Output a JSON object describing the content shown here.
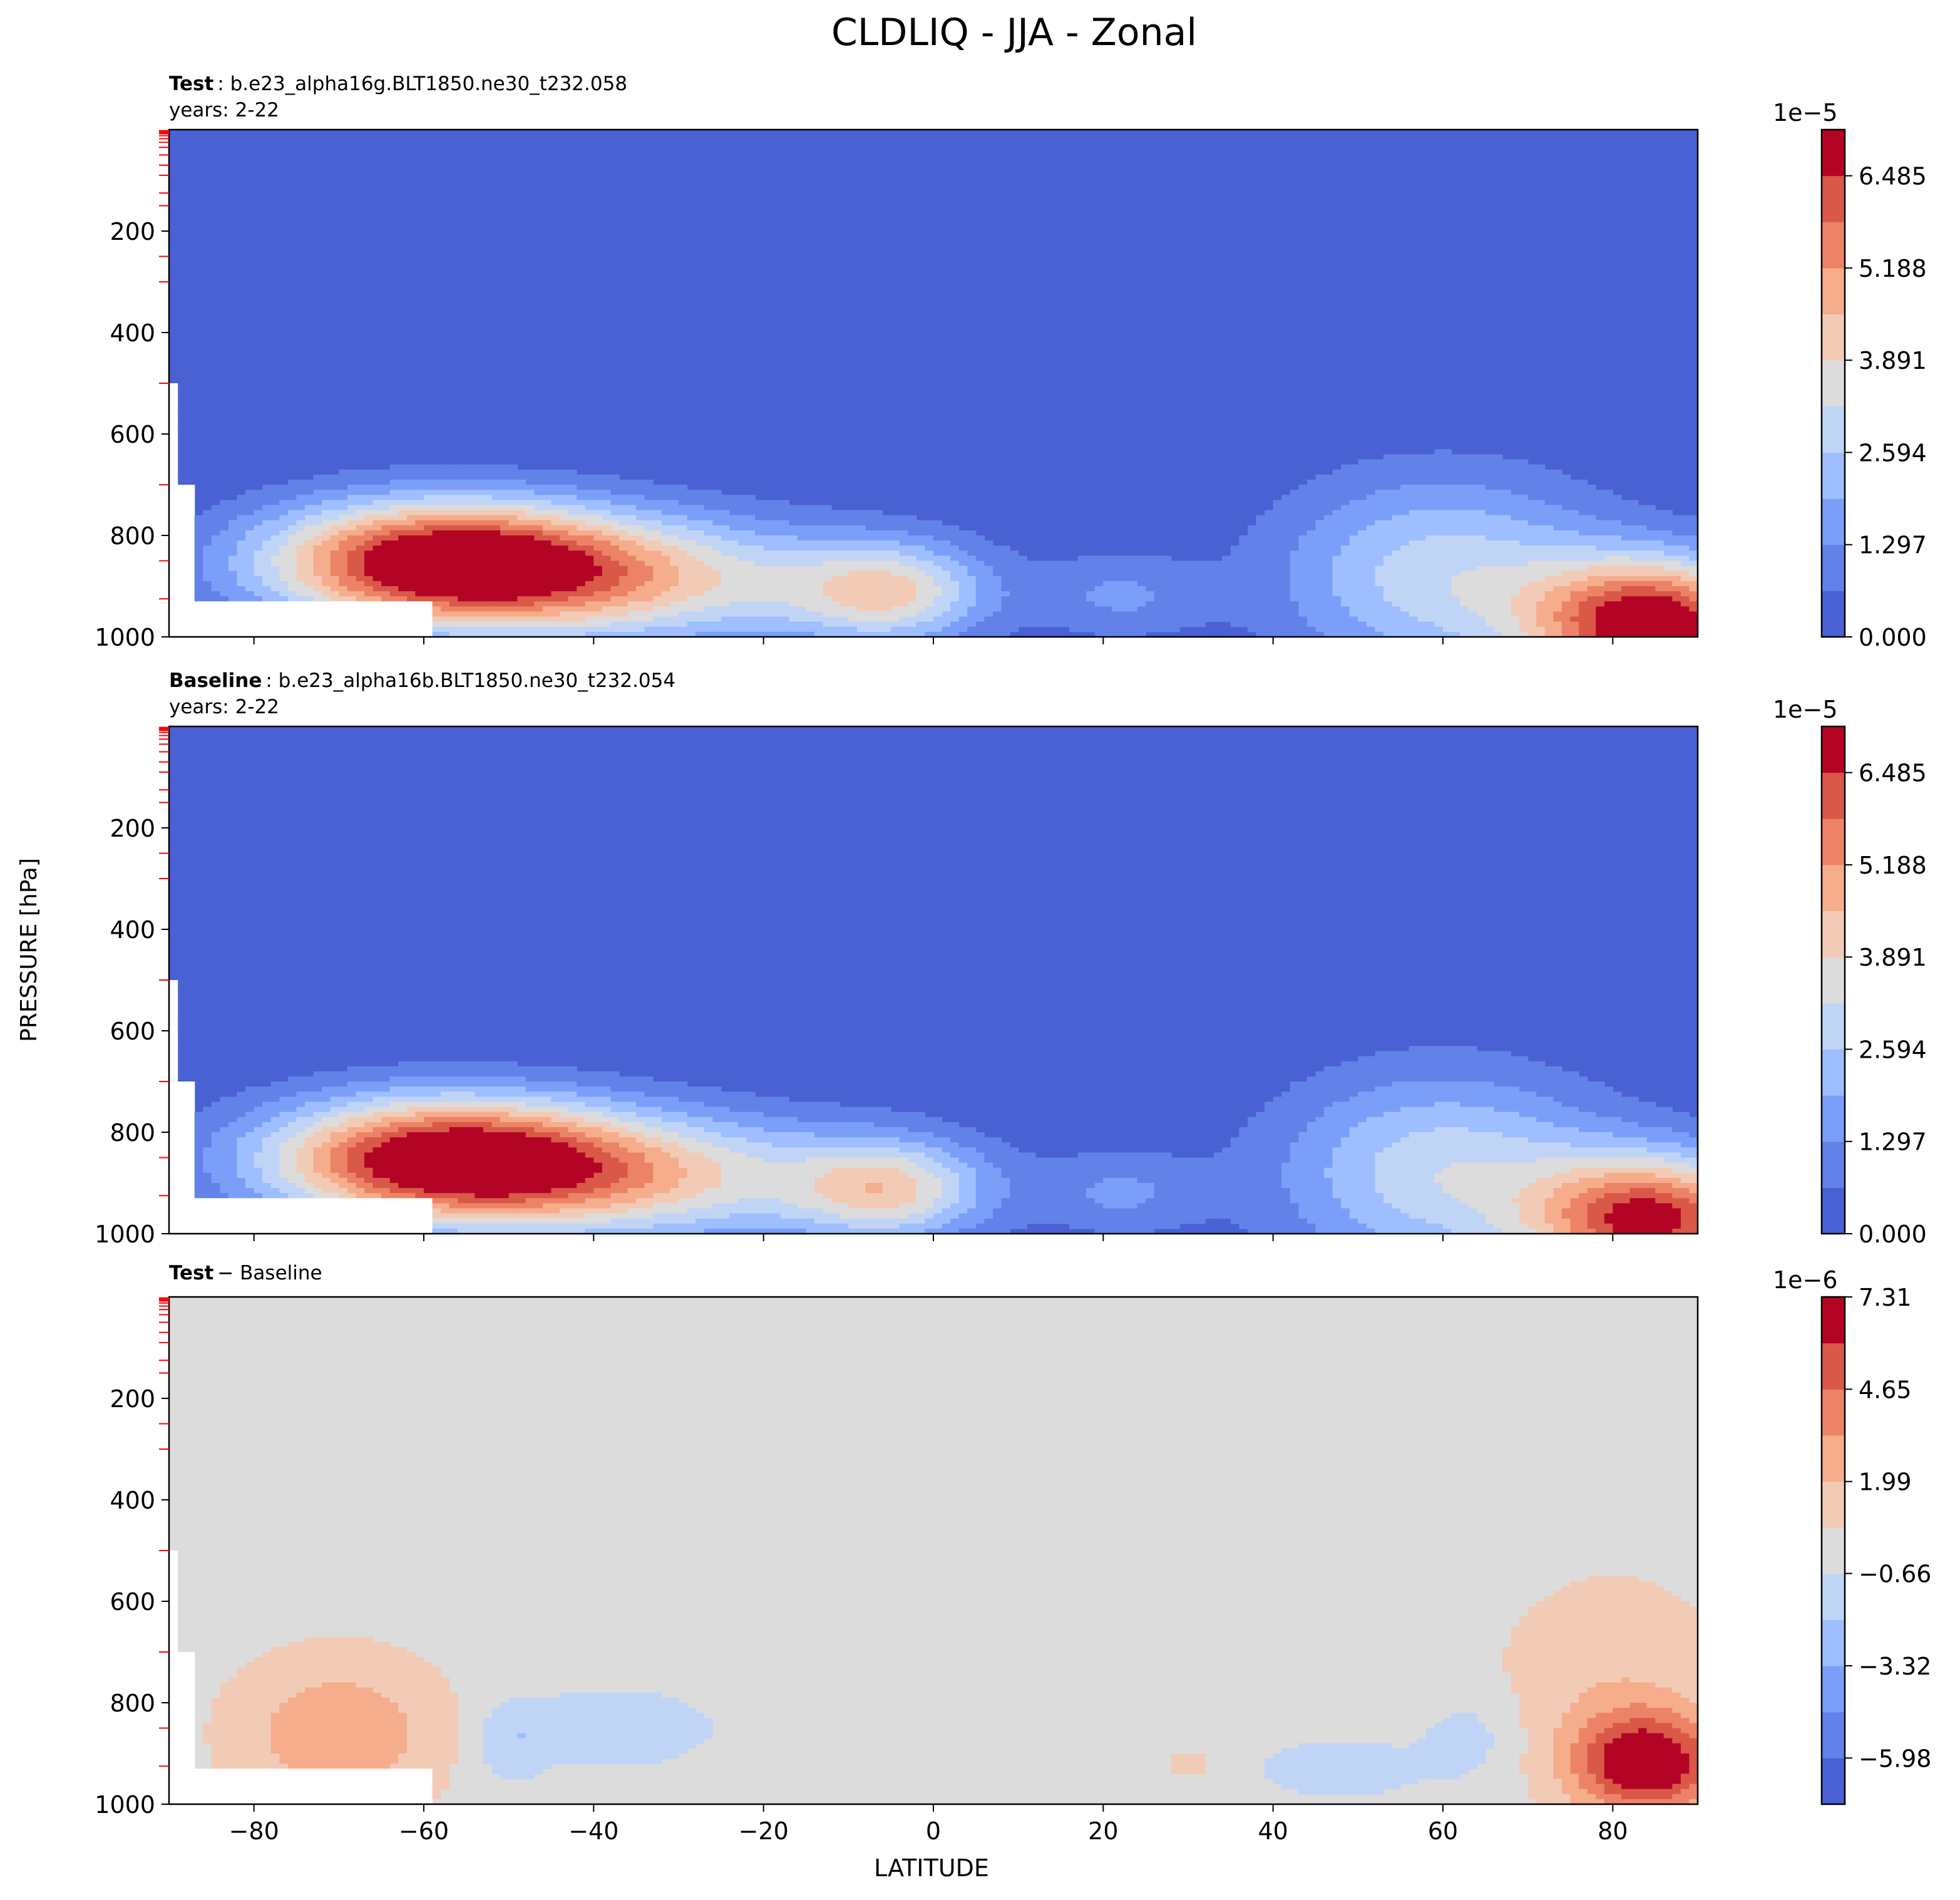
{
  "figure_title": "CLDLIQ - JJA - Zonal",
  "colors": {
    "cmap": [
      "#4961d2",
      "#6282ea",
      "#7b9ff9",
      "#9ebeff",
      "#c0d4f5",
      "#dddcdc",
      "#f2cbb7",
      "#f5ad8c",
      "#ed8366",
      "#d95847",
      "#b40426"
    ],
    "background": "#dddcdc"
  },
  "chart_data": [
    {
      "type": "contour",
      "title_bold": "Test",
      "title_rest": ": b.e23_alpha16g.BLT1850.ne30_t232.058",
      "subtitle": "years: 2-22",
      "ylabel": "PRESSURE [hPa]",
      "xlabel": "LATITUDE",
      "xlim": [
        -90,
        90
      ],
      "ylim": [
        1000,
        0
      ],
      "xticks": [
        -80,
        -60,
        -40,
        -20,
        0,
        20,
        40,
        60,
        80
      ],
      "xtick_labels": [
        "−80",
        "−60",
        "−40",
        "−20",
        "0",
        "20",
        "40",
        "60",
        "80"
      ],
      "yticks": [
        200,
        400,
        600,
        800,
        1000
      ],
      "ytick_labels": [
        "200",
        "400",
        "600",
        "800",
        "1000"
      ],
      "model_levels_hpa": [
        2,
        4,
        6,
        8,
        12,
        18,
        25,
        35,
        50,
        70,
        90,
        125,
        150,
        250,
        300,
        500,
        700,
        850,
        925
      ],
      "colorbar": {
        "exponent": "1e−5",
        "vmin": 0.0,
        "vmax": 7.134,
        "ticks": [
          0.0,
          1.297,
          2.594,
          3.891,
          5.188,
          6.485
        ],
        "tick_labels": [
          "0.000",
          "1.297",
          "2.594",
          "3.891",
          "5.188",
          "6.485"
        ]
      },
      "fields": [
        {
          "lat": -58,
          "lev": 850,
          "amp": 6.8,
          "sx": 15,
          "sy": 85
        },
        {
          "lat": -35,
          "lev": 890,
          "amp": 3.6,
          "sx": 20,
          "sy": 90
        },
        {
          "lat": -5,
          "lev": 915,
          "amp": 3.2,
          "sx": 8,
          "sy": 70
        },
        {
          "lat": 22,
          "lev": 920,
          "amp": 1.3,
          "sx": 7,
          "sy": 60
        },
        {
          "lat": 60,
          "lev": 880,
          "amp": 3.0,
          "sx": 14,
          "sy": 140
        },
        {
          "lat": 85,
          "lev": 975,
          "amp": 7.1,
          "sx": 10,
          "sy": 90
        }
      ]
    },
    {
      "type": "contour",
      "title_bold": "Baseline",
      "title_rest": ": b.e23_alpha16b.BLT1850.ne30_t232.054",
      "subtitle": "years: 2-22",
      "ylabel": "PRESSURE [hPa]",
      "xlabel": "LATITUDE",
      "xlim": [
        -90,
        90
      ],
      "ylim": [
        1000,
        0
      ],
      "xticks": [
        -80,
        -60,
        -40,
        -20,
        0,
        20,
        40,
        60,
        80
      ],
      "xtick_labels": [
        "−80",
        "−60",
        "−40",
        "−20",
        "0",
        "20",
        "40",
        "60",
        "80"
      ],
      "yticks": [
        200,
        400,
        600,
        800,
        1000
      ],
      "ytick_labels": [
        "200",
        "400",
        "600",
        "800",
        "1000"
      ],
      "model_levels_hpa": [
        2,
        4,
        6,
        8,
        12,
        18,
        25,
        35,
        50,
        70,
        90,
        125,
        150,
        250,
        300,
        500,
        700,
        850,
        925
      ],
      "colorbar": {
        "exponent": "1e−5",
        "vmin": 0.0,
        "vmax": 7.134,
        "ticks": [
          0.0,
          1.297,
          2.594,
          3.891,
          5.188,
          6.485
        ],
        "tick_labels": [
          "0.000",
          "1.297",
          "2.594",
          "3.891",
          "5.188",
          "6.485"
        ]
      },
      "fields": [
        {
          "lat": -58,
          "lev": 850,
          "amp": 6.6,
          "sx": 15,
          "sy": 85
        },
        {
          "lat": -35,
          "lev": 890,
          "amp": 3.7,
          "sx": 20,
          "sy": 90
        },
        {
          "lat": -5,
          "lev": 915,
          "amp": 3.3,
          "sx": 8,
          "sy": 70
        },
        {
          "lat": 22,
          "lev": 920,
          "amp": 1.3,
          "sx": 7,
          "sy": 60
        },
        {
          "lat": 60,
          "lev": 880,
          "amp": 3.1,
          "sx": 14,
          "sy": 140
        },
        {
          "lat": 85,
          "lev": 975,
          "amp": 6.5,
          "sx": 10,
          "sy": 90
        }
      ]
    },
    {
      "type": "contour",
      "title_bold": "Test",
      "title_rest": "− Baseline",
      "subtitle": "",
      "ylabel": "PRESSURE [hPa]",
      "xlabel": "LATITUDE",
      "xlim": [
        -90,
        90
      ],
      "ylim": [
        1000,
        0
      ],
      "xticks": [
        -80,
        -60,
        -40,
        -20,
        0,
        20,
        40,
        60,
        80
      ],
      "xtick_labels": [
        "−80",
        "−60",
        "−40",
        "−20",
        "0",
        "20",
        "40",
        "60",
        "80"
      ],
      "yticks": [
        200,
        400,
        600,
        800,
        1000
      ],
      "ytick_labels": [
        "200",
        "400",
        "600",
        "800",
        "1000"
      ],
      "model_levels_hpa": [
        2,
        4,
        6,
        8,
        12,
        18,
        25,
        35,
        50,
        70,
        90,
        125,
        150,
        250,
        300,
        500,
        700,
        850,
        925
      ],
      "colorbar": {
        "exponent": "1e−6",
        "vmin": -7.31,
        "vmax": 7.31,
        "ticks": [
          -5.98,
          -3.32,
          -0.66,
          1.99,
          4.65,
          7.31
        ],
        "tick_labels": [
          "−5.98",
          "−3.32",
          "−0.66",
          "1.99",
          "4.65",
          "7.31"
        ]
      },
      "fields": [
        {
          "lat": -70,
          "lev": 860,
          "amp": 3.0,
          "sx": 9,
          "sy": 110
        },
        {
          "lat": -38,
          "lev": 850,
          "amp": -2.0,
          "sx": 8,
          "sy": 50
        },
        {
          "lat": -50,
          "lev": 880,
          "amp": -1.6,
          "sx": 3,
          "sy": 60
        },
        {
          "lat": 48,
          "lev": 930,
          "amp": -1.6,
          "sx": 7,
          "sy": 40
        },
        {
          "lat": 63,
          "lev": 870,
          "amp": -1.4,
          "sx": 4,
          "sy": 60
        },
        {
          "lat": 80,
          "lev": 760,
          "amp": 1.6,
          "sx": 10,
          "sy": 160
        },
        {
          "lat": 84,
          "lev": 920,
          "amp": 7.3,
          "sx": 6,
          "sy": 70
        },
        {
          "lat": 30,
          "lev": 920,
          "amp": 1.4,
          "sx": 2,
          "sy": 20
        }
      ]
    }
  ]
}
